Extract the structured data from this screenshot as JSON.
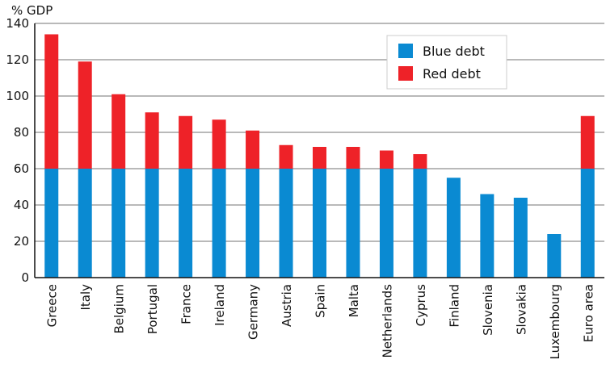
{
  "chart_data": {
    "type": "bar",
    "stacked": true,
    "ylabel": "% GDP",
    "ylim": [
      0,
      140
    ],
    "yticks": [
      0,
      20,
      40,
      60,
      80,
      100,
      120,
      140
    ],
    "grid": "horizontal",
    "legend_position": "top-right",
    "categories": [
      "Greece",
      "Italy",
      "Belgium",
      "Portugal",
      "France",
      "Ireland",
      "Germany",
      "Austria",
      "Spain",
      "Malta",
      "Netherlands",
      "Cyprus",
      "Finland",
      "Slovenia",
      "Slovakia",
      "Luxembourg",
      "Euro area"
    ],
    "series": [
      {
        "name": "Blue debt",
        "color": "#0a8ad2",
        "values": [
          60,
          60,
          60,
          60,
          60,
          60,
          60,
          60,
          60,
          60,
          60,
          60,
          55,
          46,
          44,
          24,
          60
        ]
      },
      {
        "name": "Red debt",
        "color": "#ee2228",
        "values": [
          74,
          59,
          41,
          31,
          29,
          27,
          21,
          13,
          12,
          12,
          10,
          8,
          0,
          0,
          0,
          0,
          29
        ]
      }
    ]
  }
}
